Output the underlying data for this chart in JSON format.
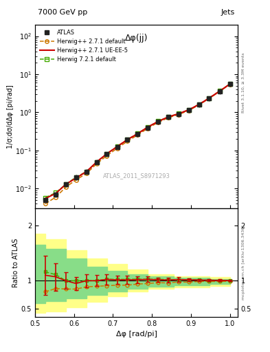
{
  "title_left": "7000 GeV pp",
  "title_right": "Jets",
  "plot_title": "Δφ(jj)",
  "ylabel_main": "1/σ;dσ/dΔφ [pi/rad]",
  "ylabel_ratio": "Ratio to ATLAS",
  "xlabel": "Δφ [rad/pi]",
  "right_label_top": "Rivet 3.1.10, ≥ 3.3M events",
  "right_label_bottom": "mcplots.cern.ch [arXiv:1306.3436]",
  "watermark": "ATLAS_2011_S8971293",
  "atlas_x": [
    0.526,
    0.553,
    0.579,
    0.605,
    0.632,
    0.658,
    0.684,
    0.711,
    0.737,
    0.763,
    0.789,
    0.816,
    0.842,
    0.868,
    0.895,
    0.921,
    0.947,
    0.974,
    1.0
  ],
  "atlas_y": [
    0.005,
    0.007,
    0.013,
    0.02,
    0.028,
    0.05,
    0.08,
    0.125,
    0.19,
    0.27,
    0.4,
    0.57,
    0.75,
    0.9,
    1.15,
    1.6,
    2.35,
    3.6,
    5.5
  ],
  "atlas_yerr": [
    0.0008,
    0.001,
    0.002,
    0.003,
    0.004,
    0.007,
    0.012,
    0.018,
    0.028,
    0.04,
    0.06,
    0.08,
    0.11,
    0.13,
    0.17,
    0.24,
    0.35,
    0.54,
    0.83
  ],
  "hw271_x": [
    0.526,
    0.553,
    0.579,
    0.605,
    0.632,
    0.658,
    0.684,
    0.711,
    0.737,
    0.763,
    0.789,
    0.816,
    0.842,
    0.868,
    0.895,
    0.921,
    0.947,
    0.974,
    1.0
  ],
  "hw271_y": [
    0.004,
    0.006,
    0.011,
    0.017,
    0.025,
    0.045,
    0.073,
    0.115,
    0.175,
    0.255,
    0.38,
    0.55,
    0.72,
    0.88,
    1.12,
    1.58,
    2.32,
    3.55,
    5.45
  ],
  "hw271ue_x": [
    0.526,
    0.553,
    0.579,
    0.605,
    0.632,
    0.658,
    0.684,
    0.711,
    0.737,
    0.763,
    0.789,
    0.816,
    0.842,
    0.868,
    0.895,
    0.921,
    0.947,
    0.974,
    1.0
  ],
  "hw271ue_y": [
    0.0055,
    0.0075,
    0.013,
    0.019,
    0.028,
    0.05,
    0.082,
    0.127,
    0.193,
    0.275,
    0.41,
    0.58,
    0.76,
    0.92,
    1.17,
    1.62,
    2.37,
    3.62,
    5.52
  ],
  "hw721_x": [
    0.526,
    0.553,
    0.579,
    0.605,
    0.632,
    0.658,
    0.684,
    0.711,
    0.737,
    0.763,
    0.789,
    0.816,
    0.842,
    0.868,
    0.895,
    0.921,
    0.947,
    0.974,
    1.0
  ],
  "hw721_y": [
    0.0058,
    0.0078,
    0.013,
    0.02,
    0.028,
    0.05,
    0.082,
    0.128,
    0.195,
    0.278,
    0.41,
    0.585,
    0.765,
    0.92,
    1.17,
    1.62,
    2.38,
    3.63,
    5.53
  ],
  "ratio_hw271_x": [
    0.526,
    0.553,
    0.579,
    0.605,
    0.632,
    0.658,
    0.684,
    0.711,
    0.737,
    0.763,
    0.789,
    0.816,
    0.842,
    0.868,
    0.895,
    0.921,
    0.947,
    0.974,
    1.0
  ],
  "ratio_hw271_y": [
    0.8,
    0.86,
    0.85,
    0.85,
    0.89,
    0.9,
    0.91,
    0.92,
    0.92,
    0.94,
    0.95,
    0.965,
    0.96,
    0.978,
    0.974,
    0.988,
    0.987,
    0.986,
    0.991
  ],
  "ratio_hw271ue_x": [
    0.526,
    0.553,
    0.579,
    0.605,
    0.632,
    0.658,
    0.684,
    0.711,
    0.737,
    0.763,
    0.789,
    0.816,
    0.842,
    0.868,
    0.895,
    0.921,
    0.947,
    0.974,
    1.0
  ],
  "ratio_hw271ue_y": [
    1.1,
    1.07,
    1.0,
    0.95,
    1.0,
    1.0,
    1.025,
    1.016,
    1.016,
    1.018,
    1.025,
    1.018,
    1.013,
    1.022,
    1.017,
    1.013,
    1.009,
    1.006,
    1.004
  ],
  "ratio_hw271ue_yerr": [
    0.35,
    0.25,
    0.15,
    0.12,
    0.12,
    0.1,
    0.09,
    0.07,
    0.07,
    0.06,
    0.05,
    0.04,
    0.04,
    0.04,
    0.03,
    0.02,
    0.02,
    0.02,
    0.01
  ],
  "ratio_hw721_x": [
    0.526,
    0.553,
    0.579,
    0.605,
    0.632,
    0.658,
    0.684,
    0.711,
    0.737,
    0.763,
    0.789,
    0.816,
    0.842,
    0.868,
    0.895,
    0.921,
    0.947,
    0.974,
    1.0
  ],
  "ratio_hw721_y": [
    1.16,
    1.11,
    1.0,
    1.0,
    1.0,
    1.0,
    1.025,
    1.024,
    1.026,
    1.029,
    1.025,
    1.026,
    1.02,
    1.022,
    1.017,
    1.013,
    1.009,
    1.008,
    1.004
  ],
  "band_yellow_x": [
    0.5,
    0.553,
    0.605,
    0.658,
    0.711,
    0.763,
    0.816,
    0.895,
    1.0
  ],
  "band_yellow_lo": [
    0.42,
    0.45,
    0.52,
    0.62,
    0.72,
    0.8,
    0.85,
    0.88,
    0.9
  ],
  "band_yellow_hi": [
    1.85,
    1.75,
    1.55,
    1.4,
    1.3,
    1.2,
    1.12,
    1.08,
    1.06
  ],
  "band_green_x": [
    0.5,
    0.553,
    0.605,
    0.658,
    0.711,
    0.763,
    0.816,
    0.895,
    1.0
  ],
  "band_green_lo": [
    0.6,
    0.63,
    0.68,
    0.74,
    0.8,
    0.86,
    0.89,
    0.92,
    0.94
  ],
  "band_green_hi": [
    1.65,
    1.58,
    1.4,
    1.25,
    1.18,
    1.12,
    1.08,
    1.05,
    1.03
  ],
  "color_atlas": "#222222",
  "color_hw271": "#cc7700",
  "color_hw271ue": "#cc0000",
  "color_hw721": "#44aa00",
  "color_yellow_band": "#ffff88",
  "color_green_band": "#88dd88",
  "xlim": [
    0.5,
    1.02
  ],
  "ylim_main": [
    0.003,
    200
  ],
  "ylim_ratio": [
    0.35,
    2.3
  ],
  "ratio_yticks": [
    0.5,
    1.0,
    2.0
  ]
}
